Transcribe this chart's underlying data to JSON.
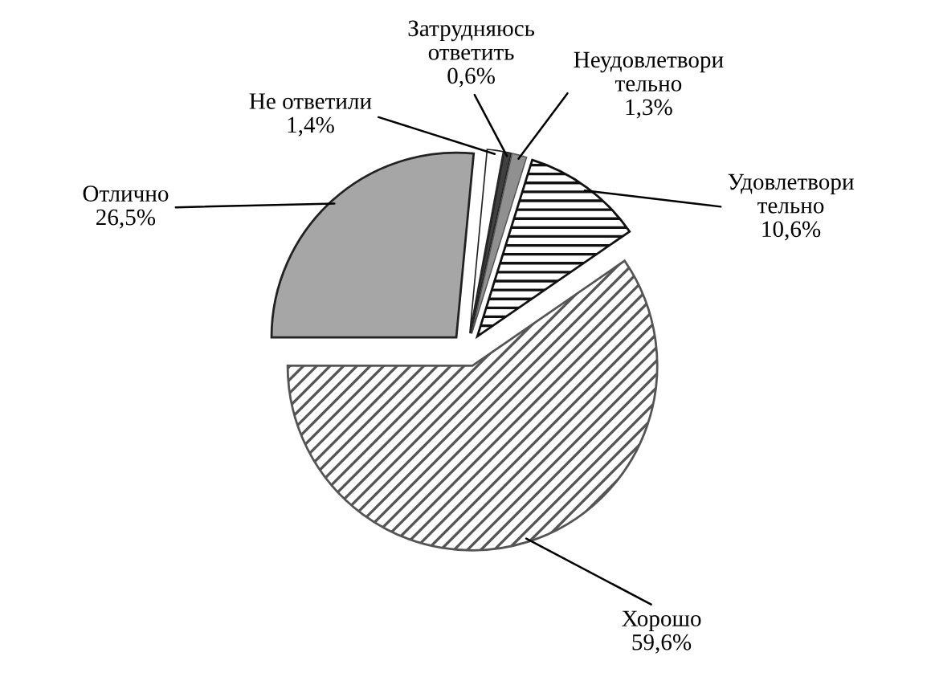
{
  "chart_data": {
    "type": "pie",
    "categories": [
      "Отлично",
      "Не ответили",
      "Затрудняюсь\nответить",
      "Неудовлетвори\nтельно",
      "Удовлетвори\nтельно",
      "Хорошо"
    ],
    "values": [
      26.5,
      1.4,
      0.6,
      1.3,
      10.6,
      59.6
    ],
    "value_labels": [
      "26,5%",
      "1,4%",
      "0,6%",
      "1,3%",
      "10,6%",
      "59,6%"
    ],
    "colors": [
      "#a6a6a6",
      "#ffffff",
      "#404040",
      "#909090",
      "#111111",
      "#555555"
    ]
  }
}
